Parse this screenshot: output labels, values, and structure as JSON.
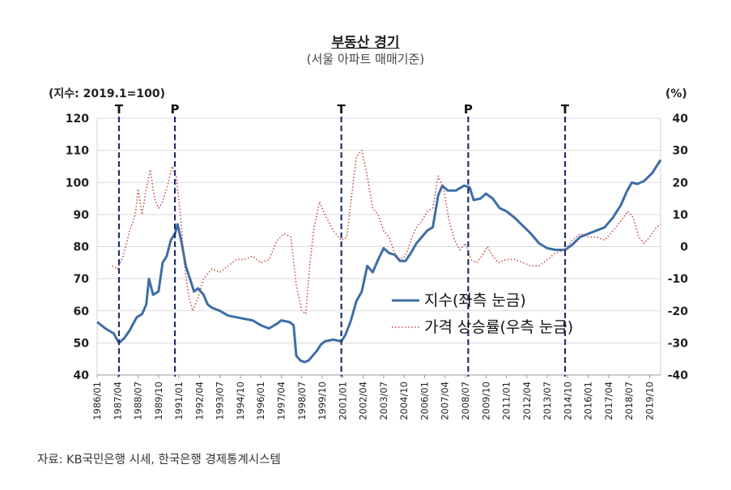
{
  "chart_data": {
    "type": "line",
    "title": "부동산 경기",
    "subtitle": "(서울 아파트 매매기준)",
    "left_axis_label": "(지수: 2019.1=100)",
    "right_axis_label": "(%)",
    "left_ylim": [
      40,
      120
    ],
    "left_yticks": [
      "40",
      "50",
      "60",
      "70",
      "80",
      "90",
      "100",
      "110",
      "120"
    ],
    "right_ylim": [
      -40,
      40
    ],
    "right_yticks": [
      "-40",
      "-30",
      "-20",
      "-10",
      "0",
      "10",
      "20",
      "30",
      "40"
    ],
    "xlim": [
      "1986/01",
      "2020/06"
    ],
    "x_tick_labels": [
      "1986/01",
      "1987/04",
      "1988/07",
      "1989/10",
      "1991/01",
      "1992/04",
      "1993/07",
      "1994/10",
      "1996/01",
      "1997/04",
      "1998/07",
      "1999/10",
      "2001/01",
      "2002/04",
      "2003/07",
      "2004/10",
      "2006/01",
      "2007/04",
      "2008/07",
      "2009/10",
      "2011/01",
      "2012/04",
      "2013/07",
      "2014/10",
      "2016/01",
      "2017/04",
      "2018/07",
      "2019/10"
    ],
    "grid": true,
    "legend_position": "center-right",
    "cycle_markers": [
      {
        "label": "T",
        "date": "1987/05"
      },
      {
        "label": "P",
        "date": "1990/10"
      },
      {
        "label": "T",
        "date": "2000/12"
      },
      {
        "label": "P",
        "date": "2008/09"
      },
      {
        "label": "T",
        "date": "2014/08"
      }
    ],
    "series": [
      {
        "name": "지수(좌측 눈금)",
        "axis": "left",
        "color": "#3d6ea6",
        "style": "solid",
        "points": [
          [
            "1986/01",
            56.5
          ],
          [
            "1986/07",
            54.5
          ],
          [
            "1987/01",
            53
          ],
          [
            "1987/05",
            50
          ],
          [
            "1987/09",
            51.5
          ],
          [
            "1988/01",
            54
          ],
          [
            "1988/06",
            58
          ],
          [
            "1988/10",
            59
          ],
          [
            "1989/01",
            62
          ],
          [
            "1989/03",
            70
          ],
          [
            "1989/06",
            65
          ],
          [
            "1989/10",
            66
          ],
          [
            "1990/01",
            75
          ],
          [
            "1990/04",
            77
          ],
          [
            "1990/07",
            82
          ],
          [
            "1990/10",
            84
          ],
          [
            "1990/12",
            87
          ],
          [
            "1991/03",
            81
          ],
          [
            "1991/06",
            74
          ],
          [
            "1991/09",
            70
          ],
          [
            "1991/12",
            66
          ],
          [
            "1992/03",
            67
          ],
          [
            "1992/07",
            65
          ],
          [
            "1992/10",
            62
          ],
          [
            "1993/01",
            61
          ],
          [
            "1993/07",
            60
          ],
          [
            "1994/01",
            58.5
          ],
          [
            "1994/07",
            58
          ],
          [
            "1995/01",
            57.5
          ],
          [
            "1995/07",
            57
          ],
          [
            "1996/01",
            55.5
          ],
          [
            "1996/07",
            54.5
          ],
          [
            "1997/01",
            56
          ],
          [
            "1997/04",
            57
          ],
          [
            "1997/10",
            56.5
          ],
          [
            "1998/01",
            55.5
          ],
          [
            "1998/03",
            46
          ],
          [
            "1998/06",
            44.5
          ],
          [
            "1998/09",
            44
          ],
          [
            "1998/12",
            44.5
          ],
          [
            "1999/03",
            46
          ],
          [
            "1999/06",
            47.5
          ],
          [
            "1999/09",
            49.5
          ],
          [
            "1999/12",
            50.5
          ],
          [
            "2000/06",
            51
          ],
          [
            "2000/12",
            50.5
          ],
          [
            "2001/03",
            52.5
          ],
          [
            "2001/07",
            57
          ],
          [
            "2001/11",
            63
          ],
          [
            "2002/03",
            66
          ],
          [
            "2002/07",
            74
          ],
          [
            "2002/11",
            72
          ],
          [
            "2003/03",
            76
          ],
          [
            "2003/07",
            79.5
          ],
          [
            "2003/11",
            78
          ],
          [
            "2004/03",
            77.5
          ],
          [
            "2004/07",
            75.5
          ],
          [
            "2004/11",
            75.5
          ],
          [
            "2005/03",
            78
          ],
          [
            "2005/07",
            81
          ],
          [
            "2005/11",
            83
          ],
          [
            "2006/03",
            85
          ],
          [
            "2006/07",
            86
          ],
          [
            "2006/11",
            96
          ],
          [
            "2007/02",
            99
          ],
          [
            "2007/06",
            97.5
          ],
          [
            "2007/12",
            97.5
          ],
          [
            "2008/06",
            99
          ],
          [
            "2008/10",
            98.5
          ],
          [
            "2009/01",
            94.5
          ],
          [
            "2009/06",
            95
          ],
          [
            "2009/10",
            96.5
          ],
          [
            "2010/03",
            95
          ],
          [
            "2010/08",
            92
          ],
          [
            "2011/01",
            91
          ],
          [
            "2011/07",
            89
          ],
          [
            "2012/01",
            86.5
          ],
          [
            "2012/07",
            84
          ],
          [
            "2013/01",
            81
          ],
          [
            "2013/07",
            79.5
          ],
          [
            "2014/01",
            79
          ],
          [
            "2014/08",
            79
          ],
          [
            "2015/01",
            80.5
          ],
          [
            "2015/07",
            83
          ],
          [
            "2016/01",
            84
          ],
          [
            "2016/07",
            85
          ],
          [
            "2017/01",
            86
          ],
          [
            "2017/07",
            89
          ],
          [
            "2018/01",
            93
          ],
          [
            "2018/05",
            97
          ],
          [
            "2018/09",
            100
          ],
          [
            "2019/01",
            99.5
          ],
          [
            "2019/06",
            100.5
          ],
          [
            "2019/12",
            103
          ],
          [
            "2020/03",
            105
          ],
          [
            "2020/06",
            107
          ]
        ]
      },
      {
        "name": "가격 상승률(우측 눈금)",
        "axis": "right",
        "color": "#c0504d",
        "style": "dotted",
        "points": [
          [
            "1986/12",
            -6
          ],
          [
            "1987/04",
            -7
          ],
          [
            "1987/08",
            -3
          ],
          [
            "1988/01",
            5
          ],
          [
            "1988/05",
            10
          ],
          [
            "1988/07",
            18
          ],
          [
            "1988/10",
            10
          ],
          [
            "1989/01",
            18
          ],
          [
            "1989/04",
            24
          ],
          [
            "1989/07",
            15
          ],
          [
            "1989/10",
            12
          ],
          [
            "1990/01",
            14
          ],
          [
            "1990/04",
            18
          ],
          [
            "1990/08",
            25
          ],
          [
            "1990/11",
            22
          ],
          [
            "1991/02",
            10
          ],
          [
            "1991/05",
            -6
          ],
          [
            "1991/08",
            -15
          ],
          [
            "1991/11",
            -20
          ],
          [
            "1992/03",
            -16
          ],
          [
            "1992/07",
            -10
          ],
          [
            "1993/01",
            -7
          ],
          [
            "1993/07",
            -8
          ],
          [
            "1994/01",
            -6
          ],
          [
            "1994/07",
            -4
          ],
          [
            "1995/01",
            -4
          ],
          [
            "1995/07",
            -3
          ],
          [
            "1996/01",
            -5
          ],
          [
            "1996/07",
            -4
          ],
          [
            "1997/01",
            2
          ],
          [
            "1997/06",
            4
          ],
          [
            "1997/11",
            3
          ],
          [
            "1998/03",
            -12
          ],
          [
            "1998/07",
            -20
          ],
          [
            "1998/10",
            -21
          ],
          [
            "1999/01",
            -5
          ],
          [
            "1999/04",
            6
          ],
          [
            "1999/08",
            14
          ],
          [
            "1999/12",
            10
          ],
          [
            "2000/06",
            5
          ],
          [
            "2000/12",
            2
          ],
          [
            "2001/04",
            3
          ],
          [
            "2001/07",
            14
          ],
          [
            "2001/11",
            28
          ],
          [
            "2002/03",
            30
          ],
          [
            "2002/07",
            22
          ],
          [
            "2002/11",
            12
          ],
          [
            "2003/03",
            10
          ],
          [
            "2003/07",
            5
          ],
          [
            "2003/11",
            3
          ],
          [
            "2004/03",
            -2
          ],
          [
            "2004/07",
            -4
          ],
          [
            "2004/11",
            -3
          ],
          [
            "2005/03",
            2
          ],
          [
            "2005/07",
            6
          ],
          [
            "2005/11",
            8
          ],
          [
            "2006/03",
            11
          ],
          [
            "2006/07",
            12
          ],
          [
            "2006/11",
            22
          ],
          [
            "2007/03",
            18
          ],
          [
            "2007/07",
            8
          ],
          [
            "2007/11",
            2
          ],
          [
            "2008/03",
            -1
          ],
          [
            "2008/07",
            1
          ],
          [
            "2008/11",
            -4
          ],
          [
            "2009/03",
            -5
          ],
          [
            "2009/07",
            -3
          ],
          [
            "2009/11",
            0
          ],
          [
            "2010/03",
            -3
          ],
          [
            "2010/07",
            -5
          ],
          [
            "2011/01",
            -4
          ],
          [
            "2011/07",
            -4
          ],
          [
            "2012/01",
            -5
          ],
          [
            "2012/07",
            -6
          ],
          [
            "2013/01",
            -6
          ],
          [
            "2013/07",
            -4
          ],
          [
            "2014/01",
            -2
          ],
          [
            "2014/08",
            -1
          ],
          [
            "2015/01",
            2
          ],
          [
            "2015/07",
            4
          ],
          [
            "2016/01",
            3
          ],
          [
            "2016/07",
            3
          ],
          [
            "2017/01",
            2
          ],
          [
            "2017/07",
            5
          ],
          [
            "2018/01",
            8
          ],
          [
            "2018/06",
            11
          ],
          [
            "2018/10",
            9
          ],
          [
            "2019/02",
            3
          ],
          [
            "2019/06",
            1
          ],
          [
            "2019/10",
            3
          ],
          [
            "2020/03",
            6
          ],
          [
            "2020/06",
            7
          ]
        ]
      }
    ]
  },
  "source_note": "자료: KB국민은행 시세, 한국은행 경제통계시스템"
}
